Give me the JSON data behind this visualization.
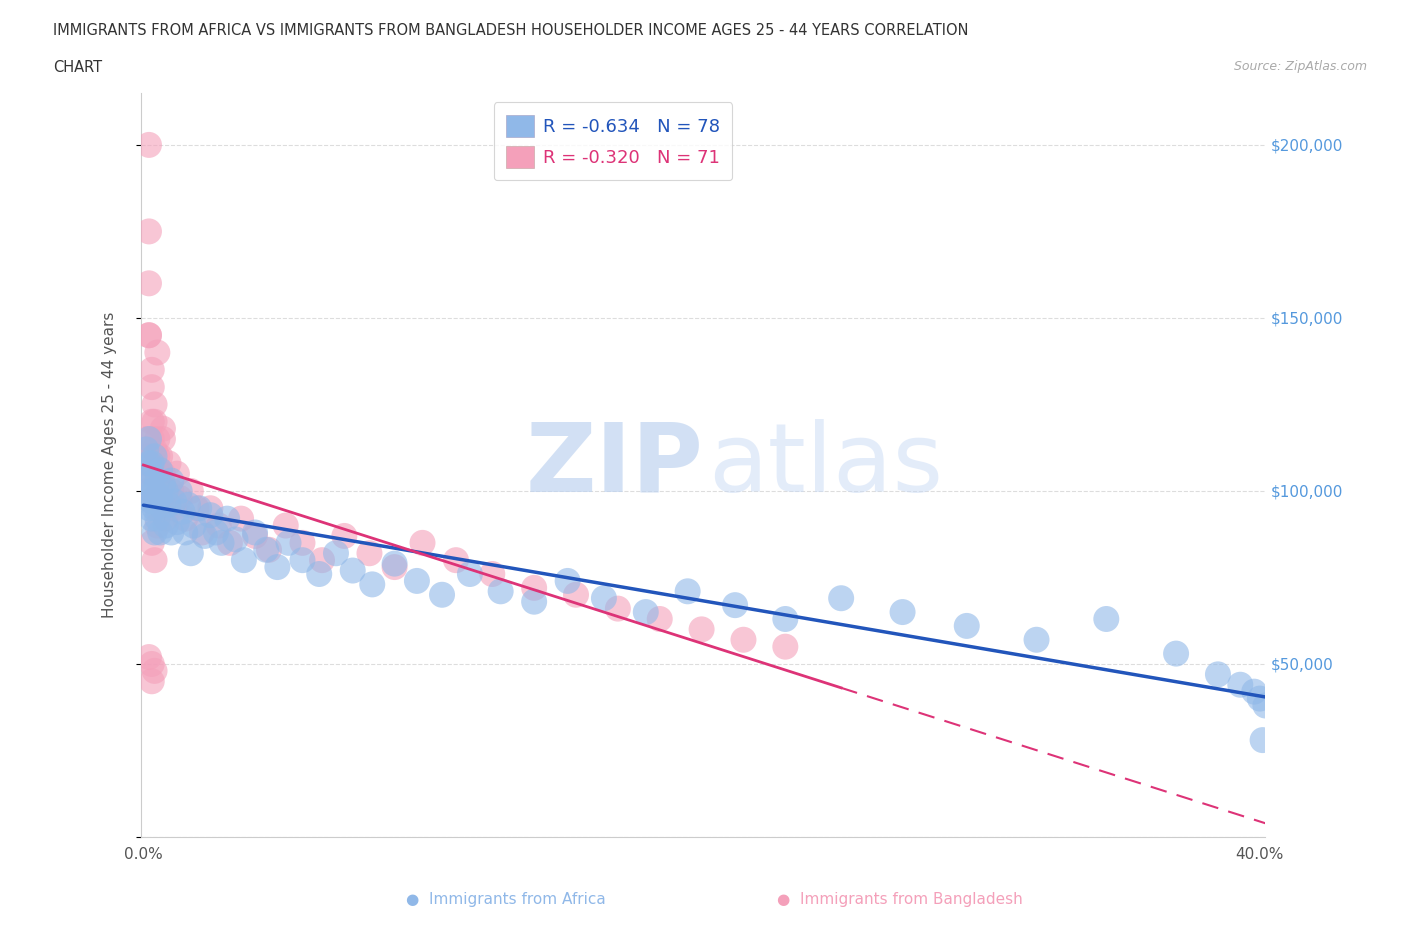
{
  "title_line1": "IMMIGRANTS FROM AFRICA VS IMMIGRANTS FROM BANGLADESH HOUSEHOLDER INCOME AGES 25 - 44 YEARS CORRELATION",
  "title_line2": "CHART",
  "source": "Source: ZipAtlas.com",
  "ylabel": "Householder Income Ages 25 - 44 years",
  "xlim": [
    -0.001,
    0.402
  ],
  "ylim": [
    0,
    215000
  ],
  "yticks": [
    0,
    50000,
    100000,
    150000,
    200000
  ],
  "ytick_labels_right": [
    "",
    "$50,000",
    "$100,000",
    "$150,000",
    "$200,000"
  ],
  "xticks": [
    0.0,
    0.05,
    0.1,
    0.15,
    0.2,
    0.25,
    0.3,
    0.35,
    0.4
  ],
  "xtick_labels": [
    "0.0%",
    "",
    "",
    "",
    "",
    "",
    "",
    "",
    "40.0%"
  ],
  "africa_color": "#90b8e8",
  "bangladesh_color": "#f4a0ba",
  "africa_line_color": "#2255bb",
  "bangladesh_line_color": "#dd3377",
  "africa_R": -0.634,
  "africa_N": 78,
  "bangladesh_R": -0.32,
  "bangladesh_N": 71,
  "watermark_zip": "ZIP",
  "watermark_atlas": "atlas",
  "legend_label1": "R = -0.634   N = 78",
  "legend_label2": "R = -0.320   N = 71",
  "africa_x": [
    0.001,
    0.001,
    0.001,
    0.002,
    0.002,
    0.002,
    0.002,
    0.003,
    0.003,
    0.003,
    0.003,
    0.003,
    0.004,
    0.004,
    0.004,
    0.004,
    0.005,
    0.005,
    0.005,
    0.006,
    0.006,
    0.006,
    0.007,
    0.007,
    0.008,
    0.008,
    0.009,
    0.01,
    0.01,
    0.011,
    0.012,
    0.013,
    0.014,
    0.015,
    0.016,
    0.017,
    0.018,
    0.02,
    0.022,
    0.024,
    0.026,
    0.028,
    0.03,
    0.033,
    0.036,
    0.04,
    0.044,
    0.048,
    0.052,
    0.057,
    0.063,
    0.069,
    0.075,
    0.082,
    0.09,
    0.098,
    0.107,
    0.117,
    0.128,
    0.14,
    0.152,
    0.165,
    0.18,
    0.195,
    0.212,
    0.23,
    0.25,
    0.272,
    0.295,
    0.32,
    0.345,
    0.37,
    0.385,
    0.393,
    0.398,
    0.4,
    0.401,
    0.402
  ],
  "africa_y": [
    105000,
    98000,
    112000,
    108000,
    95000,
    102000,
    115000,
    100000,
    97000,
    108000,
    92000,
    105000,
    110000,
    95000,
    100000,
    88000,
    103000,
    97000,
    92000,
    106000,
    98000,
    88000,
    102000,
    95000,
    100000,
    90000,
    96000,
    103000,
    88000,
    97000,
    91000,
    100000,
    94000,
    88000,
    96000,
    82000,
    90000,
    95000,
    87000,
    93000,
    88000,
    85000,
    92000,
    86000,
    80000,
    88000,
    83000,
    78000,
    85000,
    80000,
    76000,
    82000,
    77000,
    73000,
    79000,
    74000,
    70000,
    76000,
    71000,
    68000,
    74000,
    69000,
    65000,
    71000,
    67000,
    63000,
    69000,
    65000,
    61000,
    57000,
    63000,
    53000,
    47000,
    44000,
    42000,
    40000,
    28000,
    38000
  ],
  "bangladesh_x": [
    0.001,
    0.001,
    0.001,
    0.002,
    0.002,
    0.002,
    0.002,
    0.002,
    0.003,
    0.003,
    0.003,
    0.003,
    0.004,
    0.004,
    0.004,
    0.004,
    0.005,
    0.005,
    0.005,
    0.006,
    0.006,
    0.007,
    0.007,
    0.008,
    0.008,
    0.009,
    0.01,
    0.011,
    0.012,
    0.013,
    0.015,
    0.017,
    0.019,
    0.021,
    0.024,
    0.027,
    0.031,
    0.035,
    0.04,
    0.045,
    0.051,
    0.057,
    0.064,
    0.072,
    0.081,
    0.09,
    0.1,
    0.112,
    0.125,
    0.14,
    0.155,
    0.17,
    0.185,
    0.2,
    0.215,
    0.23,
    0.002,
    0.003,
    0.004,
    0.003,
    0.002,
    0.003,
    0.004,
    0.005,
    0.006,
    0.007,
    0.008,
    0.005,
    0.003,
    0.004,
    0.005
  ],
  "bangladesh_y": [
    115000,
    100000,
    108000,
    160000,
    145000,
    200000,
    110000,
    175000,
    120000,
    105000,
    115000,
    130000,
    108000,
    98000,
    120000,
    112000,
    105000,
    95000,
    115000,
    110000,
    98000,
    105000,
    115000,
    100000,
    92000,
    108000,
    100000,
    95000,
    105000,
    98000,
    92000,
    100000,
    95000,
    88000,
    95000,
    90000,
    85000,
    92000,
    87000,
    83000,
    90000,
    85000,
    80000,
    87000,
    82000,
    78000,
    85000,
    80000,
    76000,
    72000,
    70000,
    66000,
    63000,
    60000,
    57000,
    55000,
    52000,
    50000,
    48000,
    45000,
    145000,
    135000,
    125000,
    110000,
    105000,
    118000,
    95000,
    90000,
    85000,
    80000,
    140000
  ]
}
